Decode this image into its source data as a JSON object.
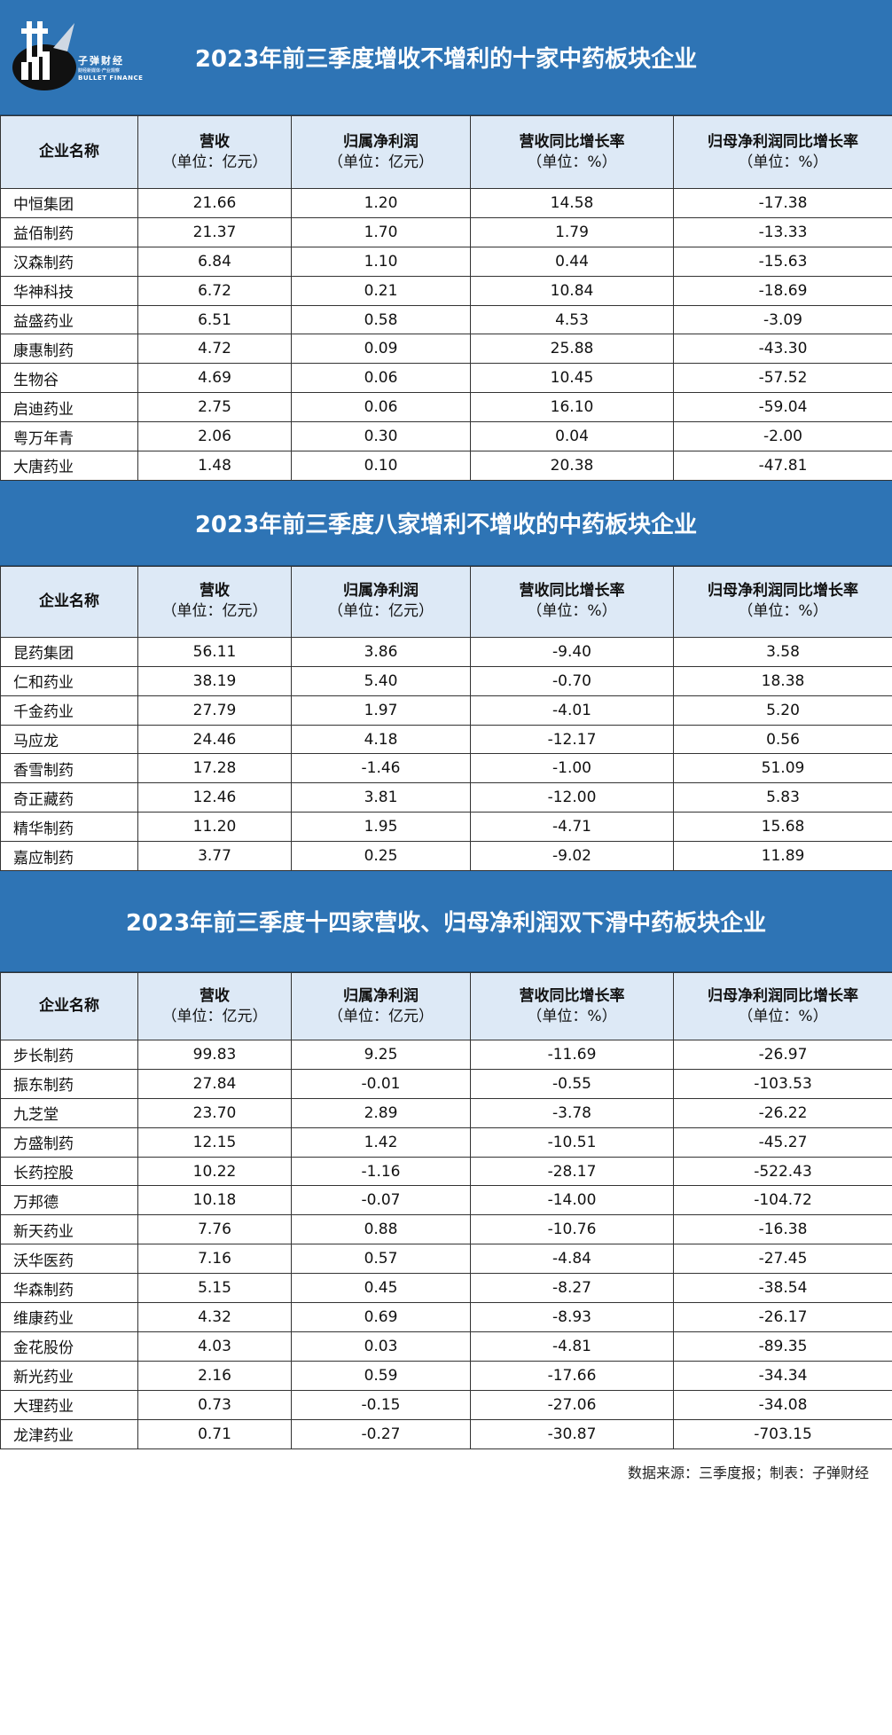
{
  "logo": {
    "cn": "子弹财经",
    "tagline": "财经新媒体·产业观察",
    "en": "BULLET FINANCE"
  },
  "headers": {
    "name": "企业名称",
    "revenue": "营收",
    "revenue_unit": "（单位：亿元）",
    "profit": "归属净利润",
    "profit_unit": "（单位：亿元）",
    "rev_growth": "营收同比增长率",
    "rev_growth_unit": "（单位：%）",
    "profit_growth": "归母净利润同比增长率",
    "profit_growth_unit": "（单位：%）"
  },
  "sections": [
    {
      "title": "2023年前三季度增收不增利的十家中药板块企业",
      "rows": [
        [
          "中恒集团",
          "21.66",
          "1.20",
          "14.58",
          "-17.38"
        ],
        [
          "益佰制药",
          "21.37",
          "1.70",
          "1.79",
          "-13.33"
        ],
        [
          "汉森制药",
          "6.84",
          "1.10",
          "0.44",
          "-15.63"
        ],
        [
          "华神科技",
          "6.72",
          "0.21",
          "10.84",
          "-18.69"
        ],
        [
          "益盛药业",
          "6.51",
          "0.58",
          "4.53",
          "-3.09"
        ],
        [
          "康惠制药",
          "4.72",
          "0.09",
          "25.88",
          "-43.30"
        ],
        [
          "生物谷",
          "4.69",
          "0.06",
          "10.45",
          "-57.52"
        ],
        [
          "启迪药业",
          "2.75",
          "0.06",
          "16.10",
          "-59.04"
        ],
        [
          "粤万年青",
          "2.06",
          "0.30",
          "0.04",
          "-2.00"
        ],
        [
          "大唐药业",
          "1.48",
          "0.10",
          "20.38",
          "-47.81"
        ]
      ]
    },
    {
      "title": "2023年前三季度八家增利不增收的中药板块企业",
      "rows": [
        [
          "昆药集团",
          "56.11",
          "3.86",
          "-9.40",
          "3.58"
        ],
        [
          "仁和药业",
          "38.19",
          "5.40",
          "-0.70",
          "18.38"
        ],
        [
          "千金药业",
          "27.79",
          "1.97",
          "-4.01",
          "5.20"
        ],
        [
          "马应龙",
          "24.46",
          "4.18",
          "-12.17",
          "0.56"
        ],
        [
          "香雪制药",
          "17.28",
          "-1.46",
          "-1.00",
          "51.09"
        ],
        [
          "奇正藏药",
          "12.46",
          "3.81",
          "-12.00",
          "5.83"
        ],
        [
          "精华制药",
          "11.20",
          "1.95",
          "-4.71",
          "15.68"
        ],
        [
          "嘉应制药",
          "3.77",
          "0.25",
          "-9.02",
          "11.89"
        ]
      ]
    },
    {
      "title": "2023年前三季度十四家营收、归母净利润双下滑中药板块企业",
      "rows": [
        [
          "步长制药",
          "99.83",
          "9.25",
          "-11.69",
          "-26.97"
        ],
        [
          "振东制药",
          "27.84",
          "-0.01",
          "-0.55",
          "-103.53"
        ],
        [
          "九芝堂",
          "23.70",
          "2.89",
          "-3.78",
          "-26.22"
        ],
        [
          "方盛制药",
          "12.15",
          "1.42",
          "-10.51",
          "-45.27"
        ],
        [
          "长药控股",
          "10.22",
          "-1.16",
          "-28.17",
          "-522.43"
        ],
        [
          "万邦德",
          "10.18",
          "-0.07",
          "-14.00",
          "-104.72"
        ],
        [
          "新天药业",
          "7.76",
          "0.88",
          "-10.76",
          "-16.38"
        ],
        [
          "沃华医药",
          "7.16",
          "0.57",
          "-4.84",
          "-27.45"
        ],
        [
          "华森制药",
          "5.15",
          "0.45",
          "-8.27",
          "-38.54"
        ],
        [
          "维康药业",
          "4.32",
          "0.69",
          "-8.93",
          "-26.17"
        ],
        [
          "金花股份",
          "4.03",
          "0.03",
          "-4.81",
          "-89.35"
        ],
        [
          "新光药业",
          "2.16",
          "0.59",
          "-17.66",
          "-34.34"
        ],
        [
          "大理药业",
          "0.73",
          "-0.15",
          "-27.06",
          "-34.08"
        ],
        [
          "龙津药业",
          "0.71",
          "-0.27",
          "-30.87",
          "-703.15"
        ]
      ]
    }
  ],
  "footer": "数据来源：三季度报；制表：子弹财经"
}
